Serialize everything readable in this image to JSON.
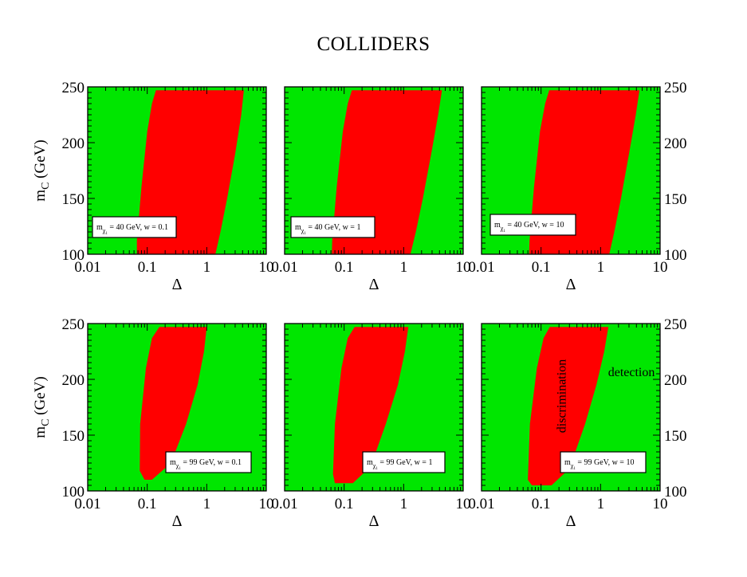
{
  "title": "COLLIDERS",
  "colors": {
    "excluded_region": "#00e600",
    "signal_region": "#ff0000",
    "frame": "#000000"
  },
  "chart_data": [
    {
      "type": "area",
      "xscale": "log",
      "xlim": [
        0.01,
        10
      ],
      "ylim": [
        100,
        250
      ],
      "xlabel": "Δ",
      "ylabel": "m_C (GeV)",
      "xticks": [
        "0.01",
        "0.1",
        "1",
        "10"
      ],
      "yticks": [
        "100",
        "150",
        "200",
        "250"
      ],
      "legend": {
        "base": "m",
        "sub": "χ",
        "subsub": "1",
        "text": " = 40 GeV,  w = 0.1"
      },
      "region_left": [
        [
          0.067,
          100
        ],
        [
          0.067,
          112
        ],
        [
          0.08,
          160
        ],
        [
          0.1,
          210
        ],
        [
          0.12,
          235
        ],
        [
          0.14,
          247
        ]
      ],
      "region_right": [
        [
          1.4,
          100
        ],
        [
          1.7,
          120
        ],
        [
          2.2,
          150
        ],
        [
          3.0,
          190
        ],
        [
          3.8,
          225
        ],
        [
          4.2,
          247
        ]
      ]
    },
    {
      "type": "area",
      "xscale": "log",
      "xlim": [
        0.01,
        10
      ],
      "ylim": [
        100,
        250
      ],
      "xlabel": "Δ",
      "ylabel": "",
      "xticks": [
        "0.01",
        "0.1",
        "1",
        "10"
      ],
      "yticks": [],
      "legend": {
        "base": "m",
        "sub": "χ",
        "subsub": "1",
        "text": " = 40 GeV,  w = 1"
      },
      "region_left": [
        [
          0.062,
          100
        ],
        [
          0.063,
          112
        ],
        [
          0.075,
          160
        ],
        [
          0.095,
          210
        ],
        [
          0.115,
          235
        ],
        [
          0.135,
          247
        ]
      ],
      "region_right": [
        [
          1.3,
          100
        ],
        [
          1.6,
          120
        ],
        [
          2.1,
          150
        ],
        [
          2.9,
          190
        ],
        [
          3.8,
          225
        ],
        [
          4.4,
          247
        ]
      ]
    },
    {
      "type": "area",
      "xscale": "log",
      "xlim": [
        0.01,
        10
      ],
      "ylim": [
        100,
        250
      ],
      "xlabel": "Δ",
      "ylabel": "",
      "xticks": [
        "0.01",
        "0.1",
        "1",
        "10"
      ],
      "yticks": [
        "100",
        "150",
        "200",
        "250"
      ],
      "legend": {
        "base": "m",
        "sub": "χ",
        "subsub": "1",
        "text": " = 40 GeV,  w = 10"
      },
      "region_left": [
        [
          0.063,
          100
        ],
        [
          0.064,
          112
        ],
        [
          0.076,
          160
        ],
        [
          0.096,
          210
        ],
        [
          0.117,
          235
        ],
        [
          0.137,
          247
        ]
      ],
      "region_right": [
        [
          1.4,
          100
        ],
        [
          1.7,
          120
        ],
        [
          2.2,
          150
        ],
        [
          3.0,
          190
        ],
        [
          3.9,
          225
        ],
        [
          4.5,
          247
        ]
      ]
    },
    {
      "type": "area",
      "xscale": "log",
      "xlim": [
        0.01,
        10
      ],
      "ylim": [
        100,
        250
      ],
      "xlabel": "Δ",
      "ylabel": "m_C (GeV)",
      "xticks": [
        "0.01",
        "0.1",
        "1",
        "10"
      ],
      "yticks": [
        "100",
        "150",
        "200",
        "250"
      ],
      "legend": {
        "base": "m",
        "sub": "χ",
        "subsub": "1",
        "text": " = 99 GeV,  w = 0.1"
      },
      "region_left": [
        [
          0.09,
          110
        ],
        [
          0.075,
          118
        ],
        [
          0.076,
          160
        ],
        [
          0.095,
          210
        ],
        [
          0.12,
          237
        ],
        [
          0.16,
          247
        ]
      ],
      "region_right": [
        [
          0.12,
          110
        ],
        [
          0.25,
          125
        ],
        [
          0.45,
          160
        ],
        [
          0.7,
          195
        ],
        [
          0.9,
          225
        ],
        [
          1.0,
          247
        ]
      ]
    },
    {
      "type": "area",
      "xscale": "log",
      "xlim": [
        0.01,
        10
      ],
      "ylim": [
        100,
        250
      ],
      "xlabel": "Δ",
      "ylabel": "",
      "xticks": [
        "0.01",
        "0.1",
        "1",
        "10"
      ],
      "yticks": [],
      "legend": {
        "base": "m",
        "sub": "χ",
        "subsub": "1",
        "text": " = 99 GeV,  w = 1"
      },
      "region_left": [
        [
          0.07,
          107
        ],
        [
          0.065,
          115
        ],
        [
          0.07,
          160
        ],
        [
          0.09,
          210
        ],
        [
          0.115,
          237
        ],
        [
          0.15,
          247
        ]
      ],
      "region_right": [
        [
          0.14,
          107
        ],
        [
          0.28,
          122
        ],
        [
          0.5,
          160
        ],
        [
          0.8,
          195
        ],
        [
          1.05,
          225
        ],
        [
          1.2,
          247
        ]
      ]
    },
    {
      "type": "area",
      "xscale": "log",
      "xlim": [
        0.01,
        10
      ],
      "ylim": [
        100,
        250
      ],
      "xlabel": "Δ",
      "ylabel": "",
      "xticks": [
        "0.01",
        "0.1",
        "1",
        "10"
      ],
      "yticks": [
        "100",
        "150",
        "200",
        "250"
      ],
      "legend": {
        "base": "m",
        "sub": "χ",
        "subsub": "1",
        "text": " = 99 GeV,  w = 10"
      },
      "annotations": [
        {
          "text": "discrimination",
          "x": 0.26,
          "y": 185,
          "rotate": -90
        },
        {
          "text": "detection",
          "x": 3.3,
          "y": 203,
          "rotate": 0
        }
      ],
      "region_left": [
        [
          0.07,
          105
        ],
        [
          0.06,
          110
        ],
        [
          0.065,
          160
        ],
        [
          0.085,
          210
        ],
        [
          0.11,
          237
        ],
        [
          0.14,
          247
        ]
      ],
      "region_right": [
        [
          0.15,
          105
        ],
        [
          0.3,
          120
        ],
        [
          0.55,
          160
        ],
        [
          0.85,
          195
        ],
        [
          1.15,
          225
        ],
        [
          1.35,
          247
        ]
      ]
    }
  ]
}
